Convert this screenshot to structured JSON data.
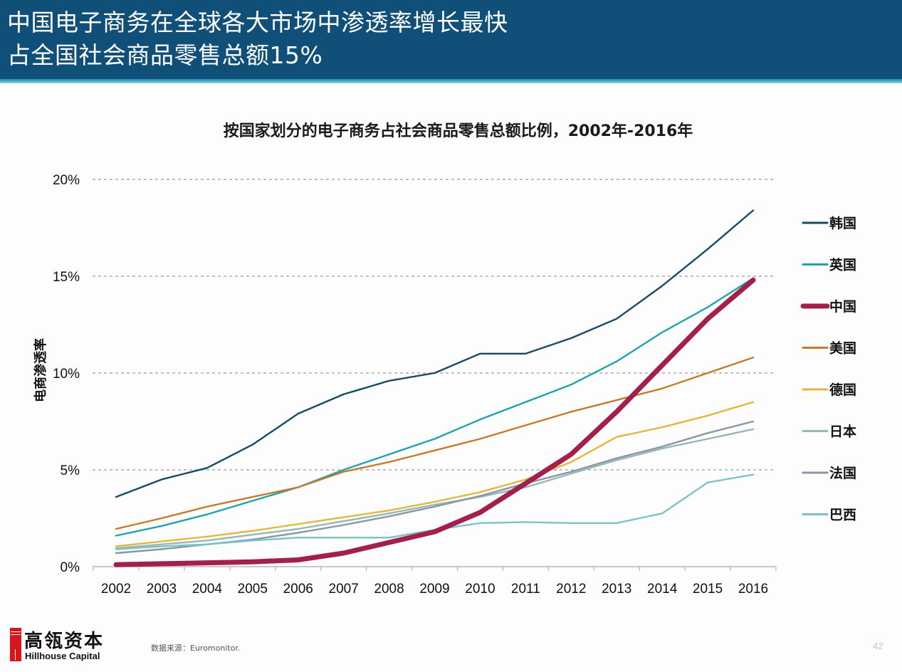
{
  "header": {
    "title_line1": "中国电子商务在全球各大市场中渗透率增长最快",
    "title_line2": "占全国社会商品零售总额15%"
  },
  "footer": {
    "brand_cn": "高瓴资本",
    "brand_en": "Hillhouse Capital",
    "source": "数据来源：Euromonitor.",
    "page_number": "42"
  },
  "chart_data": {
    "type": "line",
    "title": "按国家划分的电子商务占社会商品零售总额比例，2002年-2016年",
    "xlabel": "",
    "ylabel": "电商渗透率",
    "ylim": [
      0,
      20
    ],
    "yticks": [
      0,
      5,
      10,
      15,
      20
    ],
    "ytick_labels": [
      "0%",
      "5%",
      "10%",
      "15%",
      "20%"
    ],
    "grid": "horizontal-dashed",
    "legend_position": "right",
    "x": [
      "2002",
      "2003",
      "2004",
      "2005",
      "2006",
      "2007",
      "2008",
      "2009",
      "2010",
      "2011",
      "2012",
      "2013",
      "2014",
      "2015",
      "2016"
    ],
    "series": [
      {
        "name": "韩国",
        "color": "#174a64",
        "emphasis": false,
        "values": [
          3.6,
          4.5,
          5.1,
          6.3,
          7.9,
          8.9,
          9.6,
          10.0,
          11.0,
          11.0,
          11.8,
          12.8,
          14.5,
          16.4,
          18.4
        ]
      },
      {
        "name": "英国",
        "color": "#1fa3ab",
        "emphasis": false,
        "values": [
          1.6,
          2.1,
          2.7,
          3.4,
          4.1,
          5.0,
          5.8,
          6.6,
          7.6,
          8.5,
          9.4,
          10.6,
          12.1,
          13.4,
          14.9
        ]
      },
      {
        "name": "中国",
        "color": "#a31f4c",
        "emphasis": true,
        "values": [
          0.1,
          0.15,
          0.2,
          0.25,
          0.35,
          0.7,
          1.25,
          1.8,
          2.8,
          4.3,
          5.8,
          8.0,
          10.4,
          12.8,
          14.8
        ]
      },
      {
        "name": "美国",
        "color": "#c87a2c",
        "emphasis": false,
        "values": [
          1.95,
          2.5,
          3.1,
          3.6,
          4.1,
          4.9,
          5.4,
          6.0,
          6.6,
          7.3,
          8.0,
          8.6,
          9.2,
          10.0,
          10.8
        ]
      },
      {
        "name": "德国",
        "color": "#e0b83c",
        "emphasis": false,
        "values": [
          1.05,
          1.3,
          1.55,
          1.85,
          2.2,
          2.55,
          2.9,
          3.35,
          3.85,
          4.5,
          5.4,
          6.7,
          7.2,
          7.8,
          8.5
        ]
      },
      {
        "name": "日本",
        "color": "#93b9b4",
        "emphasis": false,
        "values": [
          0.95,
          1.15,
          1.35,
          1.65,
          1.95,
          2.35,
          2.75,
          3.2,
          3.6,
          4.1,
          4.8,
          5.5,
          6.1,
          6.6,
          7.1
        ]
      },
      {
        "name": "法国",
        "color": "#8a96a6",
        "emphasis": false,
        "values": [
          0.7,
          0.9,
          1.15,
          1.4,
          1.75,
          2.15,
          2.6,
          3.1,
          3.65,
          4.3,
          4.9,
          5.6,
          6.2,
          6.9,
          7.5
        ]
      },
      {
        "name": "巴西",
        "color": "#7cc3c6",
        "emphasis": false,
        "values": [
          0.9,
          1.05,
          1.15,
          1.35,
          1.5,
          1.5,
          1.5,
          1.9,
          2.25,
          2.3,
          2.25,
          2.25,
          2.75,
          4.35,
          4.75
        ]
      }
    ]
  }
}
